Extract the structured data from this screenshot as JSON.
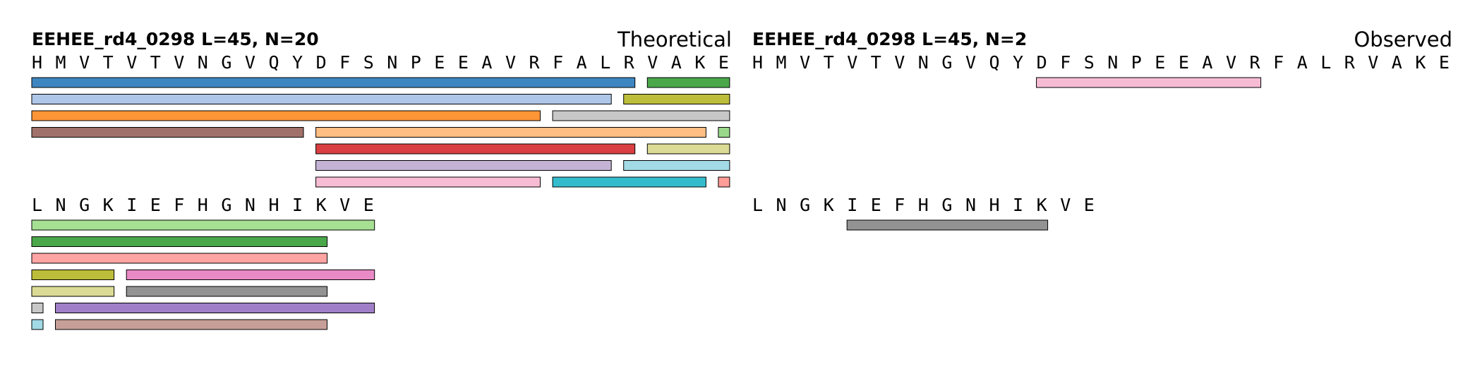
{
  "panels": [
    {
      "title": "EEHEE_rd4_0298  L=45, N=20",
      "mode_label": "Theoretical",
      "rows": [
        {
          "sequence": "HMVTVTVNGVQYDFSNPEEAVRFALRVAKE",
          "fragments": [
            {
              "start": 0,
              "end": 25,
              "track": 0,
              "color": "#3e86c1"
            },
            {
              "start": 26,
              "end": 29,
              "track": 0,
              "color": "#4aa84a"
            },
            {
              "start": 0,
              "end": 24,
              "track": 1,
              "color": "#aec7e8"
            },
            {
              "start": 25,
              "end": 29,
              "track": 1,
              "color": "#bcbd3a"
            },
            {
              "start": 0,
              "end": 21,
              "track": 2,
              "color": "#fd9537"
            },
            {
              "start": 22,
              "end": 29,
              "track": 2,
              "color": "#c7c7c7"
            },
            {
              "start": 0,
              "end": 11,
              "track": 3,
              "color": "#a0716a"
            },
            {
              "start": 12,
              "end": 28,
              "track": 3,
              "color": "#ffbe84"
            },
            {
              "start": 29,
              "end": 29,
              "track": 3,
              "color": "#9ad98a"
            },
            {
              "start": 12,
              "end": 25,
              "track": 4,
              "color": "#d93f42"
            },
            {
              "start": 26,
              "end": 29,
              "track": 4,
              "color": "#dbdb95"
            },
            {
              "start": 12,
              "end": 24,
              "track": 5,
              "color": "#c5b3d6"
            },
            {
              "start": 25,
              "end": 29,
              "track": 5,
              "color": "#a2dae6"
            },
            {
              "start": 12,
              "end": 21,
              "track": 6,
              "color": "#f7bcd4"
            },
            {
              "start": 22,
              "end": 28,
              "track": 6,
              "color": "#34bccc"
            },
            {
              "start": 29,
              "end": 29,
              "track": 6,
              "color": "#fe9c98"
            }
          ]
        },
        {
          "sequence": "LNGKIEFHGNHIKVE",
          "fragments": [
            {
              "start": 0,
              "end": 14,
              "track": 0,
              "color": "#a6e093"
            },
            {
              "start": 0,
              "end": 12,
              "track": 1,
              "color": "#4aa84a"
            },
            {
              "start": 0,
              "end": 12,
              "track": 2,
              "color": "#fea4a2"
            },
            {
              "start": 0,
              "end": 3,
              "track": 3,
              "color": "#bcbd3a"
            },
            {
              "start": 4,
              "end": 14,
              "track": 3,
              "color": "#e98ac6"
            },
            {
              "start": 0,
              "end": 3,
              "track": 4,
              "color": "#dbdb95"
            },
            {
              "start": 4,
              "end": 12,
              "track": 4,
              "color": "#939393"
            },
            {
              "start": 0,
              "end": 0,
              "track": 5,
              "color": "#c7c7c7"
            },
            {
              "start": 1,
              "end": 14,
              "track": 5,
              "color": "#a07fc6"
            },
            {
              "start": 0,
              "end": 0,
              "track": 6,
              "color": "#a2dae6"
            },
            {
              "start": 1,
              "end": 12,
              "track": 6,
              "color": "#c69f98"
            }
          ]
        }
      ]
    },
    {
      "title": "EEHEE_rd4_0298  L=45, N=2",
      "mode_label": "Observed",
      "rows": [
        {
          "sequence": "HMVTVTVNGVQYDFSNPEEAVRFALRVAKE",
          "fragments": [
            {
              "start": 12,
              "end": 21,
              "track": 0,
              "color": "#f7bcd4"
            }
          ]
        },
        {
          "sequence": "LNGKIEFHGNHIKVE",
          "fragments": [
            {
              "start": 4,
              "end": 12,
              "track": 0,
              "color": "#939393"
            }
          ]
        }
      ]
    }
  ]
}
